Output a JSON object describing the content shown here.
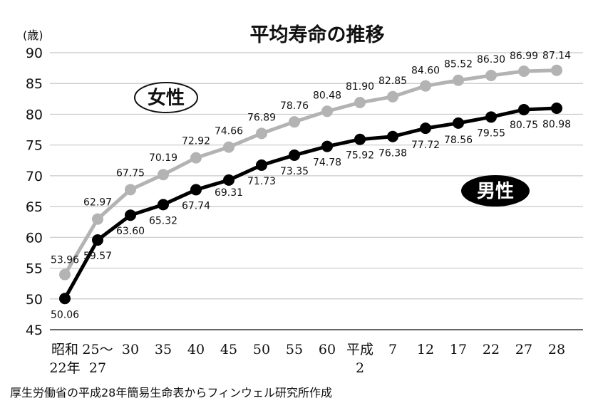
{
  "chart_data": {
    "type": "line",
    "title": "平均寿命の推移",
    "ylabel": "(歳)",
    "xlabel": "",
    "ylim": [
      45,
      90
    ],
    "yticks": [
      45,
      50,
      55,
      60,
      65,
      70,
      75,
      80,
      85,
      90
    ],
    "grid": true,
    "categories": [
      [
        "昭和",
        "22年"
      ],
      [
        "25〜",
        "27"
      ],
      [
        "30"
      ],
      [
        "35"
      ],
      [
        "40"
      ],
      [
        "45"
      ],
      [
        "50"
      ],
      [
        "55"
      ],
      [
        "60"
      ],
      [
        "平成",
        "2"
      ],
      [
        "7"
      ],
      [
        "12"
      ],
      [
        "17"
      ],
      [
        "22"
      ],
      [
        "27"
      ],
      [
        "28"
      ]
    ],
    "series": [
      {
        "name": "女性",
        "color": "#b3b3b3",
        "values": [
          53.96,
          62.97,
          67.75,
          70.19,
          72.92,
          74.66,
          76.89,
          78.76,
          80.48,
          81.9,
          82.85,
          84.6,
          85.52,
          86.3,
          86.99,
          87.14
        ],
        "labels": [
          "53.96",
          "62.97",
          "67.75",
          "70.19",
          "72.92",
          "74.66",
          "76.89",
          "78.76",
          "80.48",
          "81.90",
          "82.85",
          "84.60",
          "85.52",
          "86.30",
          "86.99",
          "87.14"
        ]
      },
      {
        "name": "男性",
        "color": "#000000",
        "values": [
          50.06,
          59.57,
          63.6,
          65.32,
          67.74,
          69.31,
          71.73,
          73.35,
          74.78,
          75.92,
          76.38,
          77.72,
          78.56,
          79.55,
          80.75,
          80.98
        ],
        "labels": [
          "50.06",
          "59.57",
          "63.60",
          "65.32",
          "67.74",
          "69.31",
          "71.73",
          "73.35",
          "74.78",
          "75.92",
          "76.38",
          "77.72",
          "78.56",
          "79.55",
          "80.75",
          "80.98"
        ]
      }
    ],
    "legend": [
      {
        "label": "女性",
        "style": "outlined",
        "placement": "upper-left"
      },
      {
        "label": "男性",
        "style": "filled",
        "placement": "right"
      }
    ]
  },
  "source_note": "厚生労働省の平成28年簡易生命表からフィンウェル研究所作成"
}
